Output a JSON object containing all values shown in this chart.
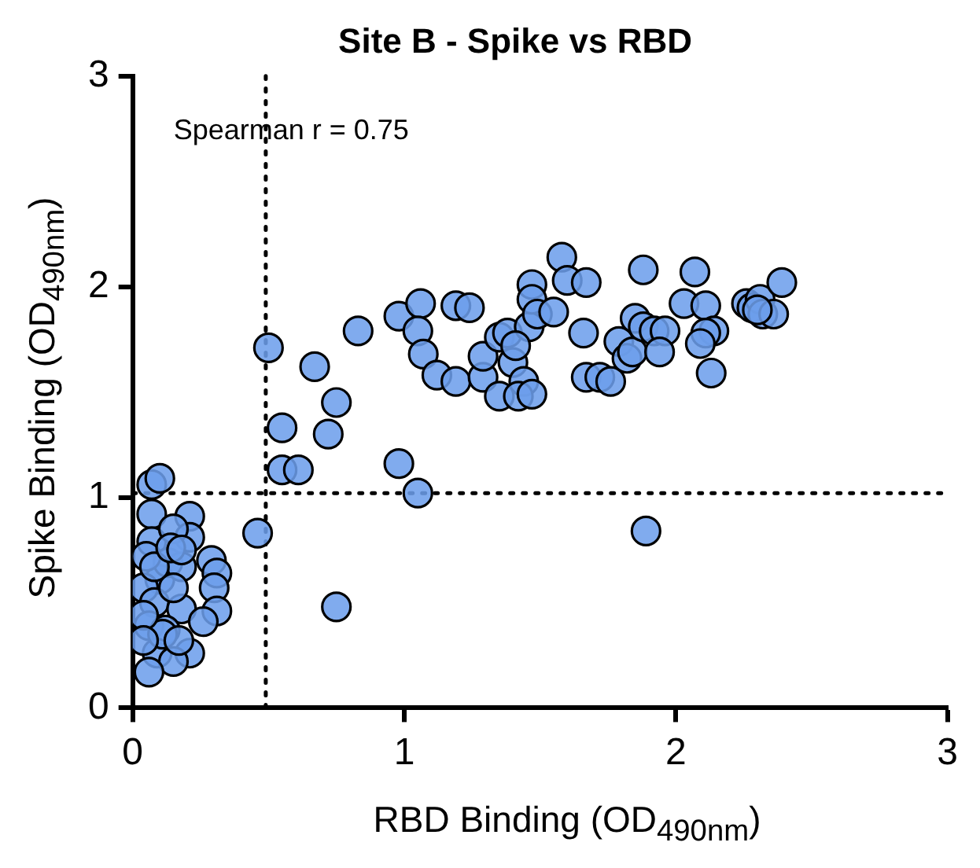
{
  "chart_data": {
    "type": "scatter",
    "title": "Site B - Spike vs RBD",
    "xlabel": "RBD Binding (OD$_{490nm}$)",
    "ylabel": "Spike Binding (OD$_{490nm}$)",
    "annotations": [
      "Spearman r = 0.75"
    ],
    "xlim": [
      0,
      3
    ],
    "ylim": [
      0,
      3
    ],
    "xticks": [
      0,
      1,
      2,
      3
    ],
    "yticks": [
      0,
      1,
      2,
      3
    ],
    "grid": false,
    "legend": false,
    "marker": "circle",
    "ref_lines": [
      {
        "axis": "x",
        "value": 0.49,
        "line_style": "dotted",
        "color": "#000000"
      },
      {
        "axis": "y",
        "value": 1.02,
        "line_style": "dotted",
        "color": "#000000"
      }
    ],
    "series": [
      {
        "color": "#6d9eeb",
        "x": [
          0.5,
          0.46,
          0.55,
          0.61,
          0.55,
          0.72,
          0.75,
          0.67,
          0.83,
          0.98,
          1.05,
          0.75,
          0.98,
          1.06,
          1.05,
          1.07,
          1.12,
          1.19,
          1.24,
          1.19,
          1.29,
          1.29,
          1.35,
          1.35,
          1.4,
          1.38,
          1.46,
          1.41,
          1.44,
          1.42,
          1.47,
          1.47,
          1.47,
          1.49,
          1.55,
          1.58,
          1.6,
          1.67,
          1.66,
          1.67,
          1.72,
          1.76,
          1.79,
          1.82,
          1.84,
          1.85,
          1.88,
          1.88,
          1.92,
          1.96,
          1.94,
          1.89,
          2.07,
          2.03,
          2.11,
          2.14,
          2.11,
          2.13,
          2.09,
          2.26,
          2.28,
          2.31,
          2.32,
          2.36,
          2.39,
          2.3,
          0.07,
          0.1,
          0.07,
          0.21,
          0.07,
          0.21,
          0.15,
          0.29,
          0.31,
          0.3,
          0.31,
          0.1,
          0.13,
          0.18,
          0.04,
          0.08,
          0.18,
          0.26,
          0.06,
          0.12,
          0.21,
          0.09,
          0.15,
          0.06,
          0.11,
          0.04,
          0.15,
          0.05,
          0.08,
          0.04,
          0.17,
          0.14,
          0.18
        ],
        "values": [
          1.71,
          0.83,
          1.13,
          1.13,
          1.33,
          1.3,
          1.45,
          1.62,
          1.79,
          1.16,
          1.02,
          0.48,
          1.86,
          1.92,
          1.79,
          1.68,
          1.58,
          1.91,
          1.9,
          1.55,
          1.57,
          1.67,
          1.76,
          1.48,
          1.64,
          1.78,
          1.81,
          1.72,
          1.55,
          1.48,
          1.49,
          2.01,
          1.94,
          1.87,
          1.88,
          2.14,
          2.03,
          2.02,
          1.78,
          1.57,
          1.57,
          1.55,
          1.74,
          1.66,
          1.69,
          1.85,
          1.81,
          2.08,
          1.79,
          1.79,
          1.69,
          0.84,
          2.07,
          1.92,
          1.91,
          1.79,
          1.78,
          1.59,
          1.73,
          1.92,
          1.9,
          1.94,
          1.87,
          1.87,
          2.02,
          1.89,
          1.06,
          1.09,
          0.92,
          0.91,
          0.79,
          0.81,
          0.85,
          0.7,
          0.64,
          0.57,
          0.46,
          0.61,
          0.69,
          0.67,
          0.57,
          0.5,
          0.47,
          0.41,
          0.39,
          0.37,
          0.26,
          0.26,
          0.22,
          0.17,
          0.35,
          0.44,
          0.57,
          0.72,
          0.67,
          0.32,
          0.32,
          0.76,
          0.75
        ]
      }
    ]
  }
}
